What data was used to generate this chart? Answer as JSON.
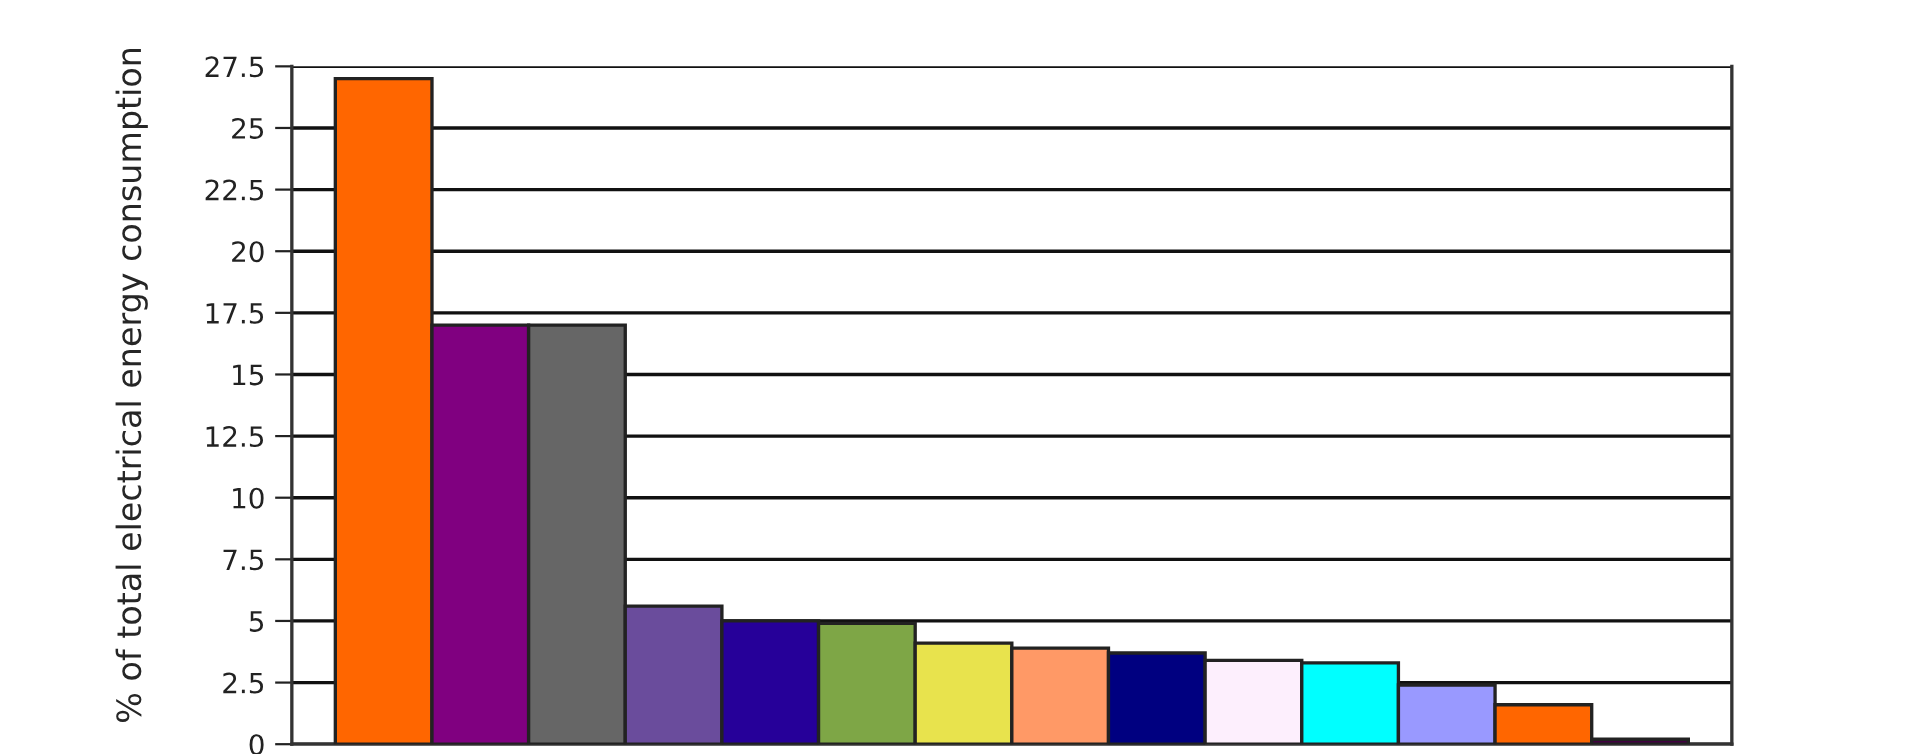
{
  "chart_data": {
    "type": "bar",
    "ylabel": "% of total electrical energy consumption",
    "categories": [
      null,
      null,
      null,
      null,
      null,
      null,
      null,
      null,
      null,
      null,
      null,
      null,
      null,
      null
    ],
    "values": [
      27,
      17,
      17,
      5.6,
      5.0,
      4.9,
      4.1,
      3.9,
      3.7,
      3.4,
      3.3,
      2.4,
      1.6,
      0.2
    ],
    "colors": [
      "#ff6600",
      "#800080",
      "#666666",
      "#6a4c9c",
      "#260099",
      "#7ea646",
      "#e8e34d",
      "#ff9966",
      "#000080",
      "#fdeffd",
      "#00ffff",
      "#9999ff",
      "#ff6600",
      "#400040"
    ],
    "ylim": [
      0,
      27.5
    ],
    "yticks": [
      0,
      2.5,
      5,
      7.5,
      10,
      12.5,
      15,
      17.5,
      20,
      22.5,
      25,
      27.5
    ],
    "grid": "y"
  }
}
